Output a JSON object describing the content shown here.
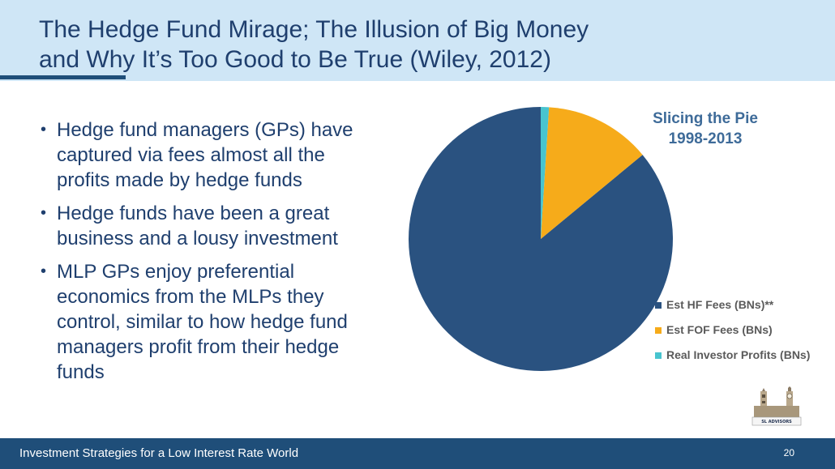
{
  "slide": {
    "title_line1": "The Hedge Fund Mirage; The Illusion of Big Money",
    "title_line2": "and Why It’s Too Good to Be True (Wiley, 2012)",
    "bullets": [
      "Hedge fund managers (GPs) have captured via fees almost all the profits made by hedge funds",
      "Hedge funds have been a great business and a lousy investment",
      "MLP GPs enjoy preferential economics from the MLPs they control, similar to how hedge fund managers profit from their hedge funds"
    ],
    "logo_text": "SL ADVISORS",
    "footer_text": "Investment Strategies for a Low Interest Rate World",
    "page_number": "20"
  },
  "colors": {
    "header_bg": "#cfe6f6",
    "title": "#1f3f6e",
    "footer_bg": "#1f4e79"
  },
  "chart_data": {
    "type": "pie",
    "title_line1": "Slicing the Pie",
    "title_line2": "1998-2013",
    "legend_position": "right",
    "series": [
      {
        "name": "Est HF Fees (BNs)**",
        "value": 86,
        "color": "#2a5280"
      },
      {
        "name": "Est FOF Fees (BNs)",
        "value": 13,
        "color": "#f6ab1a"
      },
      {
        "name": "Real Investor  Profits (BNs)",
        "value": 1,
        "color": "#48c4cf"
      }
    ]
  }
}
